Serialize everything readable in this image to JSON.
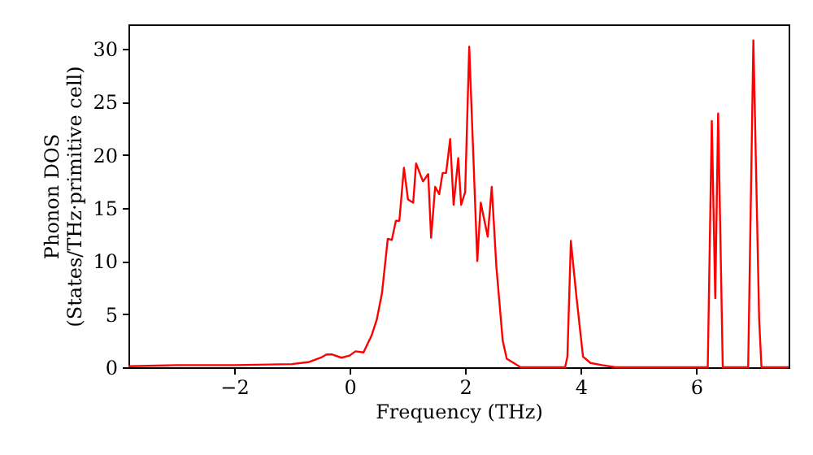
{
  "chart_data": {
    "type": "line",
    "xlabel": "Frequency (THz)",
    "ylabel": "Phonon DOS\n(States/THz·primitive cell)",
    "x": [
      -3.83,
      -3,
      -2,
      -1,
      -0.7,
      -0.5,
      -0.4,
      -0.3,
      -0.14,
      0,
      0.1,
      0.24,
      0.38,
      0.47,
      0.56,
      0.66,
      0.73,
      0.8,
      0.86,
      0.94,
      1.01,
      1.1,
      1.15,
      1.27,
      1.36,
      1.41,
      1.48,
      1.55,
      1.61,
      1.67,
      1.74,
      1.8,
      1.88,
      1.93,
      2.0,
      2.07,
      2.21,
      2.27,
      2.39,
      2.46,
      2.54,
      2.65,
      2.72,
      2.96,
      3.73,
      3.77,
      3.83,
      3.92,
      4.04,
      4.17,
      4.37,
      4.6,
      6.2,
      6.27,
      6.33,
      6.38,
      6.46,
      6.9,
      6.99,
      7.09,
      7.13,
      7.6
    ],
    "series": [
      {
        "color": "#ff0000",
        "values": [
          0.1,
          0.2,
          0.2,
          0.3,
          0.5,
          0.9,
          1.2,
          1.2,
          0.9,
          1.1,
          1.5,
          1.4,
          3.0,
          4.5,
          7.0,
          12.1,
          12.0,
          13.8,
          13.8,
          18.8,
          15.8,
          15.5,
          19.2,
          17.5,
          18.2,
          12.2,
          17.0,
          16.3,
          18.3,
          18.3,
          21.5,
          15.3,
          19.7,
          15.3,
          16.5,
          30.2,
          10.0,
          15.5,
          12.3,
          17.0,
          9.5,
          2.5,
          0.8,
          0,
          0,
          1.0,
          11.9,
          7.0,
          1.0,
          0.4,
          0.2,
          0,
          0,
          23.2,
          6.5,
          23.9,
          0,
          0,
          30.8,
          4.5,
          0,
          0
        ]
      }
    ],
    "xlim": [
      -3.83,
      7.6
    ],
    "xticks": [
      -2,
      0,
      2,
      4,
      6
    ],
    "ylim": [
      0,
      32.3
    ],
    "yticks": [
      0,
      5,
      10,
      15,
      20,
      25,
      30
    ],
    "grid": false
  }
}
